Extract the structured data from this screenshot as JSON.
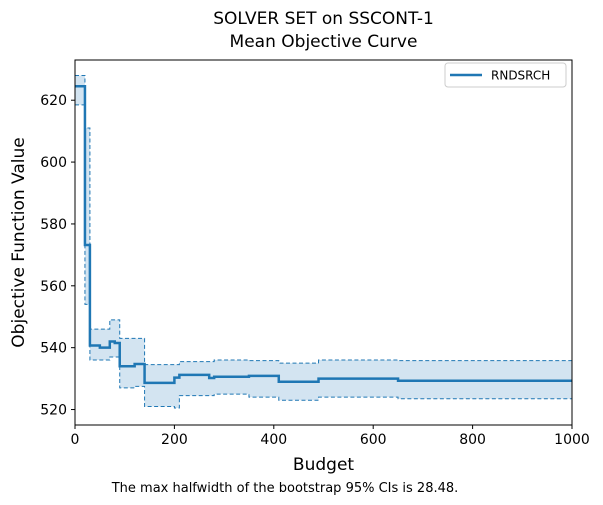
{
  "chart_data": {
    "type": "line",
    "title": "SOLVER SET on SSCONT-1",
    "subtitle": "Mean Objective Curve",
    "xlabel": "Budget",
    "ylabel": "Objective Function Value",
    "xlim": [
      0,
      1000
    ],
    "ylim": [
      515,
      633
    ],
    "xticks": [
      0,
      200,
      400,
      600,
      800,
      1000
    ],
    "yticks": [
      520,
      540,
      560,
      580,
      600,
      620
    ],
    "grid": false,
    "legend_position": "top-right",
    "note": "The max halfwidth of the bootstrap 95% CIs is 28.48.",
    "colors": {
      "series": "#1f77b4",
      "band": "#aecde6"
    },
    "series": [
      {
        "name": "RNDSRCH",
        "style": "step-post",
        "x": [
          0,
          20,
          30,
          50,
          70,
          80,
          90,
          120,
          140,
          200,
          210,
          270,
          280,
          350,
          410,
          490,
          650,
          1000
        ],
        "y": [
          624.5,
          573.2,
          540.7,
          540.0,
          542.0,
          541.5,
          534.0,
          534.7,
          528.6,
          530.3,
          531.2,
          530.2,
          530.6,
          530.9,
          529.0,
          530.0,
          529.3,
          529.3
        ],
        "ci_upper": [
          628.0,
          611.0,
          546.0,
          546.0,
          549.0,
          549.0,
          543.0,
          543.0,
          534.5,
          534.5,
          535.5,
          535.5,
          536.0,
          535.8,
          535.0,
          536.0,
          535.8,
          535.8
        ],
        "ci_lower": [
          618.5,
          554.0,
          536.0,
          536.0,
          537.0,
          537.0,
          527.0,
          527.5,
          521.0,
          520.5,
          524.5,
          524.5,
          525.0,
          524.0,
          523.0,
          524.0,
          523.5,
          523.5
        ]
      }
    ]
  }
}
